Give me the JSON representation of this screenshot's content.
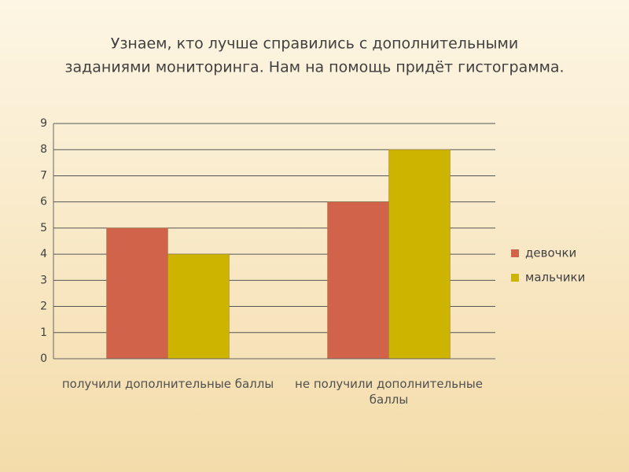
{
  "chart_data": {
    "type": "bar",
    "title": [
      "Узнаем, кто лучше справились с дополнительными",
      "заданиями мониторинга. Нам на помощь придёт гистограмма."
    ],
    "categories": [
      "получили дополнительные баллы",
      "не получили дополнительные баллы"
    ],
    "series": [
      {
        "name": "девочки",
        "color": "#d0634a",
        "values": [
          5,
          6
        ]
      },
      {
        "name": "мальчики",
        "color": "#ccb400",
        "values": [
          4,
          8
        ]
      }
    ],
    "ylim": [
      0,
      9
    ],
    "yticks": [
      0,
      1,
      2,
      3,
      4,
      5,
      6,
      7,
      8,
      9
    ],
    "grid": true,
    "legend": "right"
  }
}
